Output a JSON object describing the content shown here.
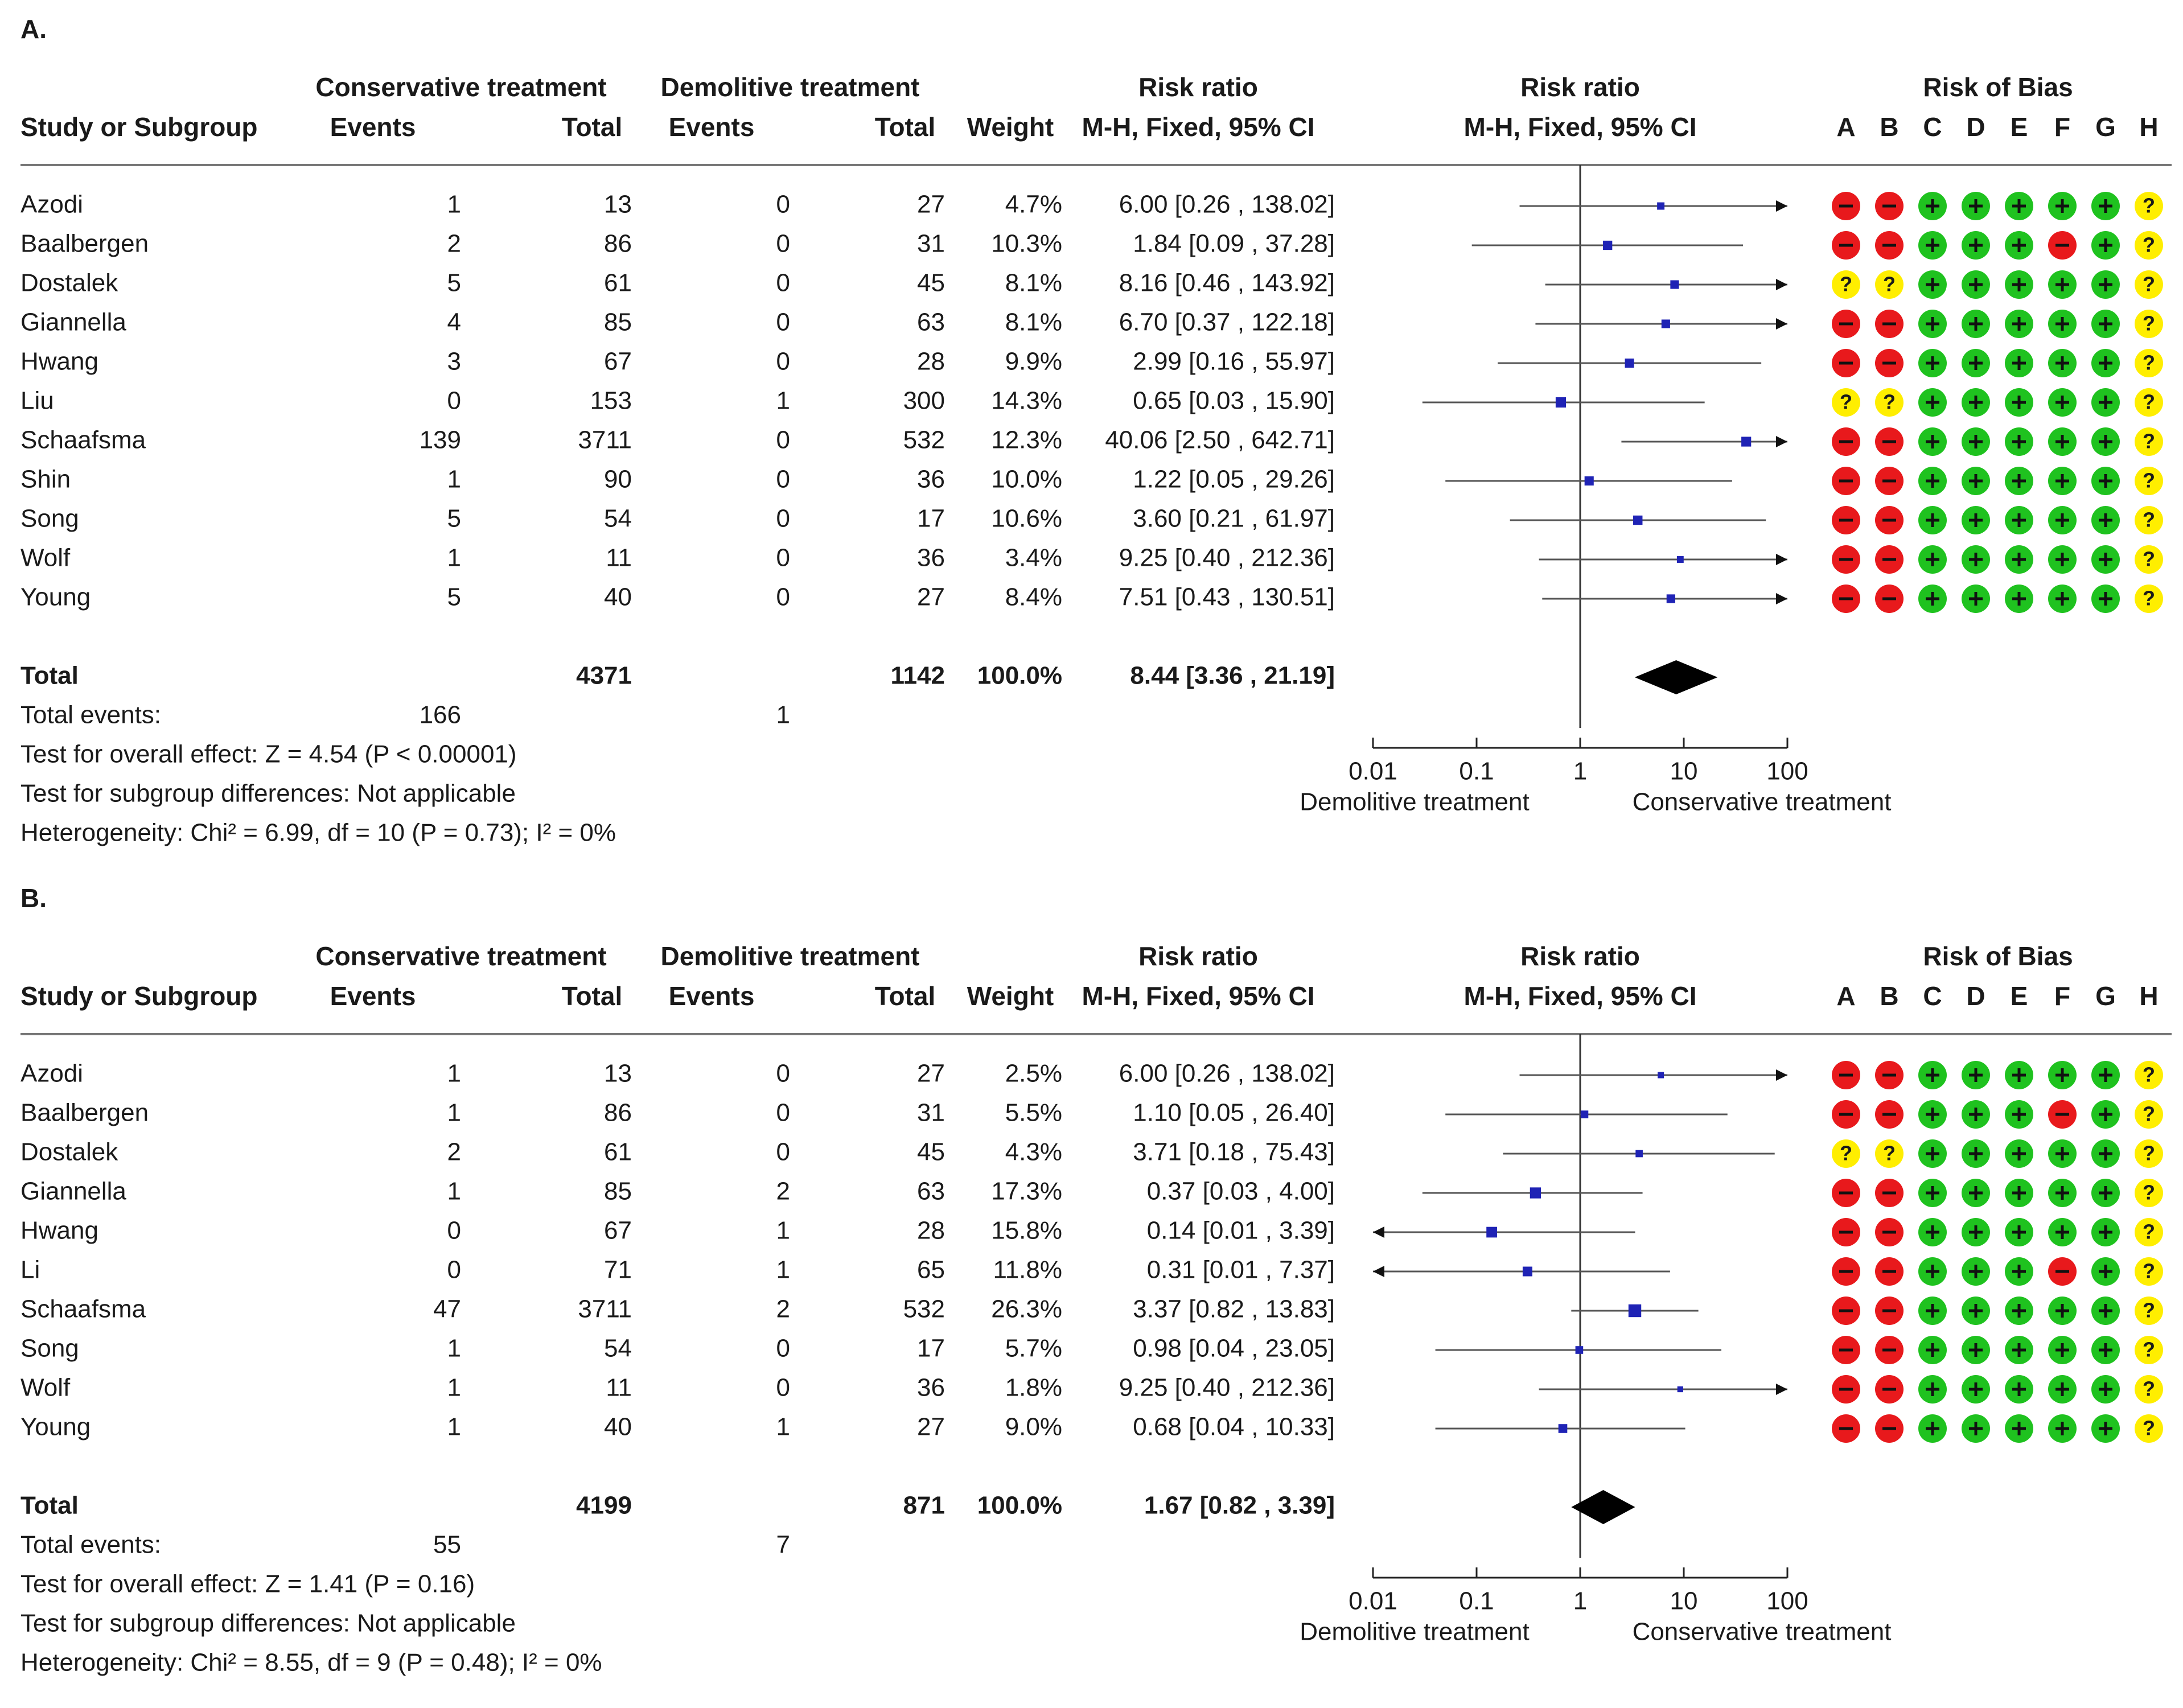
{
  "colors": {
    "text": "#1a1a1a",
    "line": "#555555",
    "marker": "#1f23b5",
    "diamond": "#000000",
    "bias_low": "#1fc21f",
    "bias_high": "#e8191c",
    "bias_unclear": "#ffee00"
  },
  "chart_data": [
    {
      "panel_label": "A.",
      "type": "forest",
      "headers": {
        "study": "Study or Subgroup",
        "group1": "Conservative treatment",
        "group2": "Demolitive treatment",
        "events": "Events",
        "total": "Total",
        "weight": "Weight",
        "rr_title": "Risk ratio",
        "rr_method": "M-H, Fixed, 95% CI",
        "plot_title": "Risk ratio",
        "plot_method": "M-H, Fixed, 95% CI",
        "bias_title": "Risk of Bias",
        "bias_domains": [
          "A",
          "B",
          "C",
          "D",
          "E",
          "F",
          "G",
          "H"
        ]
      },
      "studies": [
        {
          "name": "Azodi",
          "e1": "1",
          "n1": "13",
          "e2": "0",
          "n2": "27",
          "weight": "4.7%",
          "ci_text": "6.00 [0.26 , 138.02]",
          "rr": 6.0,
          "lo": 0.26,
          "hi": 138.02,
          "bias": [
            "-",
            "-",
            "+",
            "+",
            "+",
            "+",
            "+",
            "?"
          ]
        },
        {
          "name": "Baalbergen",
          "e1": "2",
          "n1": "86",
          "e2": "0",
          "n2": "31",
          "weight": "10.3%",
          "ci_text": "1.84 [0.09 , 37.28]",
          "rr": 1.84,
          "lo": 0.09,
          "hi": 37.28,
          "bias": [
            "-",
            "-",
            "+",
            "+",
            "+",
            "-",
            "+",
            "?"
          ]
        },
        {
          "name": "Dostalek",
          "e1": "5",
          "n1": "61",
          "e2": "0",
          "n2": "45",
          "weight": "8.1%",
          "ci_text": "8.16 [0.46 , 143.92]",
          "rr": 8.16,
          "lo": 0.46,
          "hi": 143.92,
          "bias": [
            "?",
            "?",
            "+",
            "+",
            "+",
            "+",
            "+",
            "?"
          ]
        },
        {
          "name": "Giannella",
          "e1": "4",
          "n1": "85",
          "e2": "0",
          "n2": "63",
          "weight": "8.1%",
          "ci_text": "6.70 [0.37 , 122.18]",
          "rr": 6.7,
          "lo": 0.37,
          "hi": 122.18,
          "bias": [
            "-",
            "-",
            "+",
            "+",
            "+",
            "+",
            "+",
            "?"
          ]
        },
        {
          "name": "Hwang",
          "e1": "3",
          "n1": "67",
          "e2": "0",
          "n2": "28",
          "weight": "9.9%",
          "ci_text": "2.99 [0.16 , 55.97]",
          "rr": 2.99,
          "lo": 0.16,
          "hi": 55.97,
          "bias": [
            "-",
            "-",
            "+",
            "+",
            "+",
            "+",
            "+",
            "?"
          ]
        },
        {
          "name": "Liu",
          "e1": "0",
          "n1": "153",
          "e2": "1",
          "n2": "300",
          "weight": "14.3%",
          "ci_text": "0.65 [0.03 , 15.90]",
          "rr": 0.65,
          "lo": 0.03,
          "hi": 15.9,
          "bias": [
            "?",
            "?",
            "+",
            "+",
            "+",
            "+",
            "+",
            "?"
          ]
        },
        {
          "name": "Schaafsma",
          "e1": "139",
          "n1": "3711",
          "e2": "0",
          "n2": "532",
          "weight": "12.3%",
          "ci_text": "40.06 [2.50 , 642.71]",
          "rr": 40.06,
          "lo": 2.5,
          "hi": 642.71,
          "bias": [
            "-",
            "-",
            "+",
            "+",
            "+",
            "+",
            "+",
            "?"
          ]
        },
        {
          "name": "Shin",
          "e1": "1",
          "n1": "90",
          "e2": "0",
          "n2": "36",
          "weight": "10.0%",
          "ci_text": "1.22 [0.05 , 29.26]",
          "rr": 1.22,
          "lo": 0.05,
          "hi": 29.26,
          "bias": [
            "-",
            "-",
            "+",
            "+",
            "+",
            "+",
            "+",
            "?"
          ]
        },
        {
          "name": "Song",
          "e1": "5",
          "n1": "54",
          "e2": "0",
          "n2": "17",
          "weight": "10.6%",
          "ci_text": "3.60 [0.21 , 61.97]",
          "rr": 3.6,
          "lo": 0.21,
          "hi": 61.97,
          "bias": [
            "-",
            "-",
            "+",
            "+",
            "+",
            "+",
            "+",
            "?"
          ]
        },
        {
          "name": "Wolf",
          "e1": "1",
          "n1": "11",
          "e2": "0",
          "n2": "36",
          "weight": "3.4%",
          "ci_text": "9.25 [0.40 , 212.36]",
          "rr": 9.25,
          "lo": 0.4,
          "hi": 212.36,
          "bias": [
            "-",
            "-",
            "+",
            "+",
            "+",
            "+",
            "+",
            "?"
          ]
        },
        {
          "name": "Young",
          "e1": "5",
          "n1": "40",
          "e2": "0",
          "n2": "27",
          "weight": "8.4%",
          "ci_text": "7.51 [0.43 , 130.51]",
          "rr": 7.51,
          "lo": 0.43,
          "hi": 130.51,
          "bias": [
            "-",
            "-",
            "+",
            "+",
            "+",
            "+",
            "+",
            "?"
          ]
        }
      ],
      "total": {
        "label": "Total",
        "n1": "4371",
        "n2": "1142",
        "weight": "100.0%",
        "ci_text": "8.44 [3.36 , 21.19]",
        "rr": 8.44,
        "lo": 3.36,
        "hi": 21.19
      },
      "total_events": {
        "label": "Total events:",
        "e1": "166",
        "e2": "1"
      },
      "footnotes": [
        "Test for overall effect: Z = 4.54 (P < 0.00001)",
        "Test for subgroup differences: Not applicable",
        "Heterogeneity: Chi² = 6.99, df = 10 (P = 0.73); I² = 0%"
      ],
      "axis": {
        "scale": "log",
        "xlim": [
          0.01,
          100
        ],
        "ticks": [
          0.01,
          0.1,
          1,
          10,
          100
        ],
        "tick_labels": [
          "0.01",
          "0.1",
          "1",
          "10",
          "100"
        ],
        "favours_left": "Demolitive treatment",
        "favours_right": "Conservative treatment"
      }
    },
    {
      "panel_label": "B.",
      "type": "forest",
      "headers": {
        "study": "Study or Subgroup",
        "group1": "Conservative treatment",
        "group2": "Demolitive treatment",
        "events": "Events",
        "total": "Total",
        "weight": "Weight",
        "rr_title": "Risk ratio",
        "rr_method": "M-H, Fixed, 95% CI",
        "plot_title": "Risk ratio",
        "plot_method": "M-H, Fixed, 95% CI",
        "bias_title": "Risk of Bias",
        "bias_domains": [
          "A",
          "B",
          "C",
          "D",
          "E",
          "F",
          "G",
          "H"
        ]
      },
      "studies": [
        {
          "name": "Azodi",
          "e1": "1",
          "n1": "13",
          "e2": "0",
          "n2": "27",
          "weight": "2.5%",
          "ci_text": "6.00 [0.26 , 138.02]",
          "rr": 6.0,
          "lo": 0.26,
          "hi": 138.02,
          "bias": [
            "-",
            "-",
            "+",
            "+",
            "+",
            "+",
            "+",
            "?"
          ]
        },
        {
          "name": "Baalbergen",
          "e1": "1",
          "n1": "86",
          "e2": "0",
          "n2": "31",
          "weight": "5.5%",
          "ci_text": "1.10 [0.05 , 26.40]",
          "rr": 1.1,
          "lo": 0.05,
          "hi": 26.4,
          "bias": [
            "-",
            "-",
            "+",
            "+",
            "+",
            "-",
            "+",
            "?"
          ]
        },
        {
          "name": "Dostalek",
          "e1": "2",
          "n1": "61",
          "e2": "0",
          "n2": "45",
          "weight": "4.3%",
          "ci_text": "3.71 [0.18 , 75.43]",
          "rr": 3.71,
          "lo": 0.18,
          "hi": 75.43,
          "bias": [
            "?",
            "?",
            "+",
            "+",
            "+",
            "+",
            "+",
            "?"
          ]
        },
        {
          "name": "Giannella",
          "e1": "1",
          "n1": "85",
          "e2": "2",
          "n2": "63",
          "weight": "17.3%",
          "ci_text": "0.37 [0.03 , 4.00]",
          "rr": 0.37,
          "lo": 0.03,
          "hi": 4.0,
          "bias": [
            "-",
            "-",
            "+",
            "+",
            "+",
            "+",
            "+",
            "?"
          ]
        },
        {
          "name": "Hwang",
          "e1": "0",
          "n1": "67",
          "e2": "1",
          "n2": "28",
          "weight": "15.8%",
          "ci_text": "0.14 [0.01 , 3.39]",
          "rr": 0.14,
          "lo": 0.01,
          "hi": 3.39,
          "bias": [
            "-",
            "-",
            "+",
            "+",
            "+",
            "+",
            "+",
            "?"
          ]
        },
        {
          "name": "Li",
          "e1": "0",
          "n1": "71",
          "e2": "1",
          "n2": "65",
          "weight": "11.8%",
          "ci_text": "0.31 [0.01 , 7.37]",
          "rr": 0.31,
          "lo": 0.01,
          "hi": 7.37,
          "bias": [
            "-",
            "-",
            "+",
            "+",
            "+",
            "-",
            "+",
            "?"
          ]
        },
        {
          "name": "Schaafsma",
          "e1": "47",
          "n1": "3711",
          "e2": "2",
          "n2": "532",
          "weight": "26.3%",
          "ci_text": "3.37 [0.82 , 13.83]",
          "rr": 3.37,
          "lo": 0.82,
          "hi": 13.83,
          "bias": [
            "-",
            "-",
            "+",
            "+",
            "+",
            "+",
            "+",
            "?"
          ]
        },
        {
          "name": "Song",
          "e1": "1",
          "n1": "54",
          "e2": "0",
          "n2": "17",
          "weight": "5.7%",
          "ci_text": "0.98 [0.04 , 23.05]",
          "rr": 0.98,
          "lo": 0.04,
          "hi": 23.05,
          "bias": [
            "-",
            "-",
            "+",
            "+",
            "+",
            "+",
            "+",
            "?"
          ]
        },
        {
          "name": "Wolf",
          "e1": "1",
          "n1": "11",
          "e2": "0",
          "n2": "36",
          "weight": "1.8%",
          "ci_text": "9.25 [0.40 , 212.36]",
          "rr": 9.25,
          "lo": 0.4,
          "hi": 212.36,
          "bias": [
            "-",
            "-",
            "+",
            "+",
            "+",
            "+",
            "+",
            "?"
          ]
        },
        {
          "name": "Young",
          "e1": "1",
          "n1": "40",
          "e2": "1",
          "n2": "27",
          "weight": "9.0%",
          "ci_text": "0.68 [0.04 , 10.33]",
          "rr": 0.68,
          "lo": 0.04,
          "hi": 10.33,
          "bias": [
            "-",
            "-",
            "+",
            "+",
            "+",
            "+",
            "+",
            "?"
          ]
        }
      ],
      "total": {
        "label": "Total",
        "n1": "4199",
        "n2": "871",
        "weight": "100.0%",
        "ci_text": "1.67 [0.82 , 3.39]",
        "rr": 1.67,
        "lo": 0.82,
        "hi": 3.39
      },
      "total_events": {
        "label": "Total events:",
        "e1": "55",
        "e2": "7"
      },
      "footnotes": [
        "Test for overall effect: Z = 1.41 (P = 0.16)",
        "Test for subgroup differences: Not applicable",
        "Heterogeneity: Chi² = 8.55, df = 9 (P = 0.48); I² = 0%"
      ],
      "axis": {
        "scale": "log",
        "xlim": [
          0.01,
          100
        ],
        "ticks": [
          0.01,
          0.1,
          1,
          10,
          100
        ],
        "tick_labels": [
          "0.01",
          "0.1",
          "1",
          "10",
          "100"
        ],
        "favours_left": "Demolitive treatment",
        "favours_right": "Conservative treatment"
      }
    }
  ]
}
